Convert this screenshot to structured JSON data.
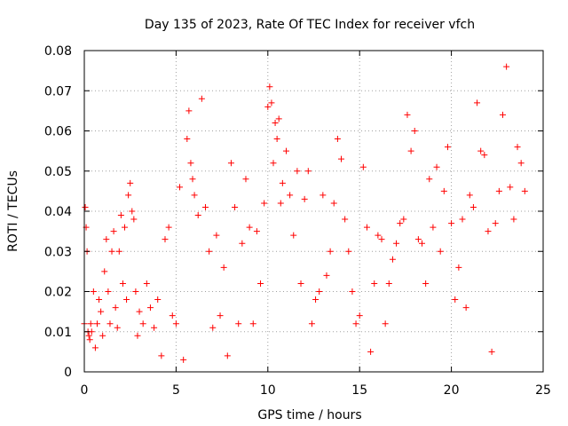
{
  "chart_data": {
    "type": "scatter",
    "title": "Day 135 of 2023, Rate Of TEC Index for receiver vfch",
    "xlabel": "GPS time / hours",
    "ylabel": "ROTI / TECUs",
    "xlim": [
      0,
      25
    ],
    "ylim": [
      0,
      0.08
    ],
    "x_ticks": [
      "0",
      "5",
      "10",
      "15",
      "20",
      "25"
    ],
    "y_ticks": [
      "0",
      "0.01",
      "0.02",
      "0.03",
      "0.04",
      "0.05",
      "0.06",
      "0.07",
      "0.08"
    ],
    "grid": true,
    "marker": "plus",
    "color": "#ff0000",
    "series": [
      {
        "x": [
          0.0,
          0.05,
          0.1,
          0.15,
          0.2,
          0.25,
          0.3,
          0.35,
          0.4,
          0.5,
          0.6,
          0.7,
          0.8,
          0.9,
          1.0,
          1.1,
          1.2,
          1.3,
          1.4,
          1.5,
          1.6,
          1.7,
          1.8,
          1.9,
          2.0,
          2.1,
          2.2,
          2.3,
          2.4,
          2.5,
          2.6,
          2.7,
          2.8,
          2.9,
          3.0,
          3.2,
          3.4,
          3.6,
          3.8,
          4.0,
          4.2,
          4.4,
          4.6,
          4.8,
          5.0,
          5.2,
          5.4,
          5.6,
          5.7,
          5.8,
          5.9,
          6.0,
          6.2,
          6.4,
          6.6,
          6.8,
          7.0,
          7.2,
          7.4,
          7.6,
          7.8,
          8.0,
          8.2,
          8.4,
          8.6,
          8.8,
          9.0,
          9.2,
          9.4,
          9.6,
          9.8,
          10.0,
          10.1,
          10.2,
          10.3,
          10.4,
          10.5,
          10.6,
          10.7,
          10.8,
          11.0,
          11.2,
          11.4,
          11.6,
          11.8,
          12.0,
          12.2,
          12.4,
          12.6,
          12.8,
          13.0,
          13.2,
          13.4,
          13.6,
          13.8,
          14.0,
          14.2,
          14.4,
          14.6,
          14.8,
          15.0,
          15.2,
          15.4,
          15.6,
          15.8,
          16.0,
          16.2,
          16.4,
          16.6,
          16.8,
          17.0,
          17.2,
          17.4,
          17.6,
          17.8,
          18.0,
          18.2,
          18.4,
          18.6,
          18.8,
          19.0,
          19.2,
          19.4,
          19.6,
          19.8,
          20.0,
          20.2,
          20.4,
          20.6,
          20.8,
          21.0,
          21.2,
          21.4,
          21.6,
          21.8,
          22.0,
          22.2,
          22.4,
          22.6,
          22.8,
          23.0,
          23.2,
          23.4,
          23.6,
          23.8,
          24.0
        ],
        "y": [
          0.012,
          0.041,
          0.036,
          0.03,
          0.01,
          0.009,
          0.008,
          0.012,
          0.01,
          0.02,
          0.006,
          0.012,
          0.018,
          0.015,
          0.009,
          0.025,
          0.033,
          0.02,
          0.012,
          0.03,
          0.035,
          0.016,
          0.011,
          0.03,
          0.039,
          0.022,
          0.036,
          0.018,
          0.044,
          0.047,
          0.04,
          0.038,
          0.02,
          0.009,
          0.015,
          0.012,
          0.022,
          0.016,
          0.011,
          0.018,
          0.004,
          0.033,
          0.036,
          0.014,
          0.012,
          0.046,
          0.003,
          0.058,
          0.065,
          0.052,
          0.048,
          0.044,
          0.039,
          0.068,
          0.041,
          0.03,
          0.011,
          0.034,
          0.014,
          0.026,
          0.004,
          0.052,
          0.041,
          0.012,
          0.032,
          0.048,
          0.036,
          0.012,
          0.035,
          0.022,
          0.042,
          0.066,
          0.071,
          0.067,
          0.052,
          0.062,
          0.058,
          0.063,
          0.042,
          0.047,
          0.055,
          0.044,
          0.034,
          0.05,
          0.022,
          0.043,
          0.05,
          0.012,
          0.018,
          0.02,
          0.044,
          0.024,
          0.03,
          0.042,
          0.058,
          0.053,
          0.038,
          0.03,
          0.02,
          0.012,
          0.014,
          0.051,
          0.036,
          0.005,
          0.022,
          0.034,
          0.033,
          0.012,
          0.022,
          0.028,
          0.032,
          0.037,
          0.038,
          0.064,
          0.055,
          0.06,
          0.033,
          0.032,
          0.022,
          0.048,
          0.036,
          0.051,
          0.03,
          0.045,
          0.056,
          0.037,
          0.018,
          0.026,
          0.038,
          0.016,
          0.044,
          0.041,
          0.067,
          0.055,
          0.054,
          0.035,
          0.005,
          0.037,
          0.045,
          0.064,
          0.076,
          0.046,
          0.038,
          0.056,
          0.052,
          0.045
        ]
      }
    ]
  }
}
